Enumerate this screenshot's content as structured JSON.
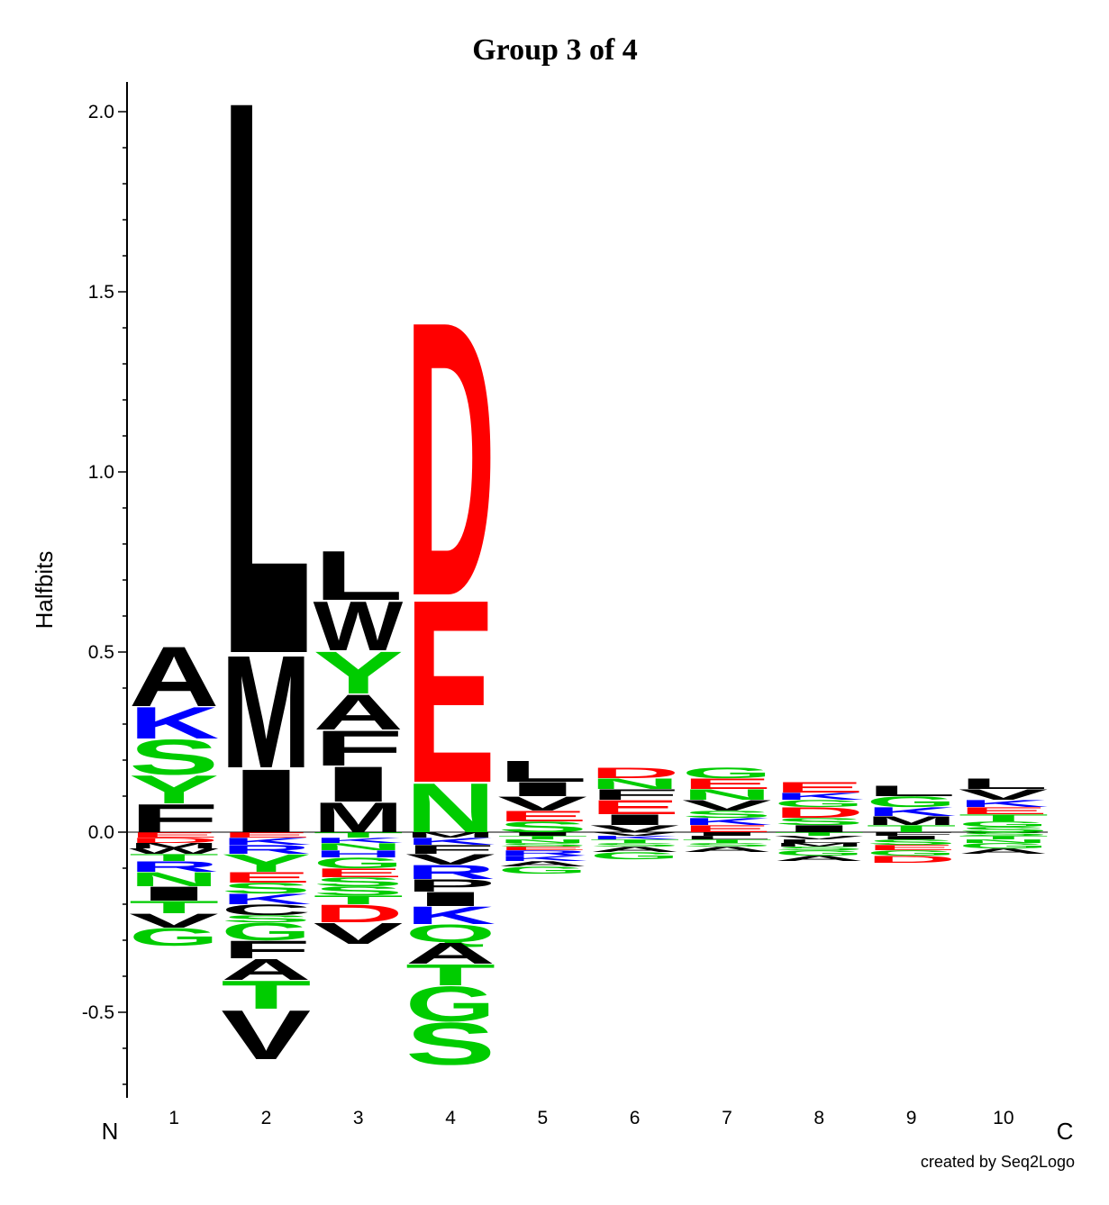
{
  "chart_data": {
    "type": "sequence-logo",
    "title": "Group 3 of 4",
    "ylabel": "Halfbits",
    "ylim": [
      -0.72,
      2.08
    ],
    "yticks": [
      -0.5,
      0.0,
      0.5,
      1.0,
      1.5,
      2.0
    ],
    "ytick_labels": [
      "-0.5",
      "0.0",
      "0.5",
      "1.0",
      "1.5",
      "2.0"
    ],
    "positions": [
      "1",
      "2",
      "3",
      "4",
      "5",
      "6",
      "7",
      "8",
      "9",
      "10"
    ],
    "n_terminal_label": "N",
    "c_terminal_label": "C",
    "credit": "created by Seq2Logo",
    "colors": {
      "hydrophobic": "#000000",
      "polar": "#00cc00",
      "basic": "#0000ff",
      "acidic": "#ff0000"
    },
    "columns": [
      {
        "position": "1",
        "above": [
          [
            "F",
            0.08
          ],
          [
            "Y",
            0.08
          ],
          [
            "S",
            0.1
          ],
          [
            "K",
            0.09
          ],
          [
            "A",
            0.17
          ]
        ],
        "below": [
          [
            "E",
            0.015
          ],
          [
            "D",
            0.015
          ],
          [
            "M",
            0.015
          ],
          [
            "W",
            0.015
          ],
          [
            "T",
            0.02
          ],
          [
            "R",
            0.03
          ],
          [
            "N",
            0.04
          ],
          [
            "I",
            0.04
          ],
          [
            "T",
            0.035
          ],
          [
            "V",
            0.04
          ],
          [
            "G",
            0.05
          ]
        ]
      },
      {
        "position": "2",
        "above": [
          [
            "I",
            0.18
          ],
          [
            "M",
            0.32
          ],
          [
            "L",
            1.58
          ]
        ],
        "below": [
          [
            "E",
            0.015
          ],
          [
            "K",
            0.02
          ],
          [
            "R",
            0.025
          ],
          [
            "Y",
            0.05
          ],
          [
            "E",
            0.03
          ],
          [
            "S",
            0.03
          ],
          [
            "K",
            0.03
          ],
          [
            "C",
            0.03
          ],
          [
            "S",
            0.02
          ],
          [
            "G",
            0.05
          ],
          [
            "F",
            0.05
          ],
          [
            "A",
            0.06
          ],
          [
            "T",
            0.08
          ],
          [
            "V",
            0.14
          ]
        ]
      },
      {
        "position": "3",
        "above": [
          [
            "M",
            0.085
          ],
          [
            "I",
            0.1
          ],
          [
            "F",
            0.1
          ],
          [
            "A",
            0.1
          ],
          [
            "Y",
            0.12
          ],
          [
            "W",
            0.14
          ],
          [
            "L",
            0.14
          ]
        ],
        "below": [
          [
            "T",
            0.015
          ],
          [
            "K",
            0.015
          ],
          [
            "N",
            0.02
          ],
          [
            "H",
            0.02
          ],
          [
            "G",
            0.03
          ],
          [
            "E",
            0.025
          ],
          [
            "S",
            0.025
          ],
          [
            "S",
            0.025
          ],
          [
            "T",
            0.025
          ],
          [
            "D",
            0.05
          ],
          [
            "V",
            0.06
          ]
        ]
      },
      {
        "position": "4",
        "above": [
          [
            "N",
            0.14
          ],
          [
            "E",
            0.52
          ],
          [
            "D",
            0.78
          ]
        ],
        "below": [
          [
            "M",
            0.015
          ],
          [
            "K",
            0.02
          ],
          [
            "F",
            0.025
          ],
          [
            "V",
            0.03
          ],
          [
            "R",
            0.04
          ],
          [
            "P",
            0.035
          ],
          [
            "I",
            0.04
          ],
          [
            "K",
            0.05
          ],
          [
            "Q",
            0.05
          ],
          [
            "A",
            0.06
          ],
          [
            "T",
            0.06
          ],
          [
            "G",
            0.1
          ],
          [
            "S",
            0.12
          ]
        ]
      },
      {
        "position": "5",
        "above": [
          [
            "S",
            0.03
          ],
          [
            "E",
            0.03
          ],
          [
            "V",
            0.04
          ],
          [
            "I",
            0.04
          ],
          [
            "L",
            0.06
          ]
        ],
        "below": [
          [
            "I",
            0.01
          ],
          [
            "T",
            0.01
          ],
          [
            "N",
            0.01
          ],
          [
            "S",
            0.01
          ],
          [
            "E",
            0.01
          ],
          [
            "R",
            0.015
          ],
          [
            "K",
            0.015
          ],
          [
            "A",
            0.015
          ],
          [
            "G",
            0.02
          ]
        ]
      },
      {
        "position": "6",
        "above": [
          [
            "V",
            0.02
          ],
          [
            "I",
            0.03
          ],
          [
            "E",
            0.04
          ],
          [
            "F",
            0.03
          ],
          [
            "N",
            0.03
          ],
          [
            "D",
            0.03
          ]
        ],
        "below": [
          [
            "V",
            0.01
          ],
          [
            "K",
            0.01
          ],
          [
            "T",
            0.01
          ],
          [
            "S",
            0.01
          ],
          [
            "A",
            0.015
          ],
          [
            "G",
            0.02
          ]
        ]
      },
      {
        "position": "7",
        "above": [
          [
            "E",
            0.02
          ],
          [
            "K",
            0.02
          ],
          [
            "S",
            0.02
          ],
          [
            "V",
            0.03
          ],
          [
            "N",
            0.03
          ],
          [
            "E",
            0.03
          ],
          [
            "G",
            0.03
          ]
        ],
        "below": [
          [
            "I",
            0.01
          ],
          [
            "L",
            0.01
          ],
          [
            "T",
            0.01
          ],
          [
            "S",
            0.01
          ],
          [
            "A",
            0.015
          ]
        ]
      },
      {
        "position": "8",
        "above": [
          [
            "I",
            0.02
          ],
          [
            "S",
            0.02
          ],
          [
            "D",
            0.03
          ],
          [
            "G",
            0.02
          ],
          [
            "K",
            0.02
          ],
          [
            "E",
            0.03
          ]
        ],
        "below": [
          [
            "T",
            0.01
          ],
          [
            "V",
            0.01
          ],
          [
            "L",
            0.01
          ],
          [
            "M",
            0.01
          ],
          [
            "S",
            0.01
          ],
          [
            "G",
            0.015
          ],
          [
            "A",
            0.015
          ]
        ]
      },
      {
        "position": "9",
        "above": [
          [
            "T",
            0.02
          ],
          [
            "M",
            0.025
          ],
          [
            "K",
            0.025
          ],
          [
            "G",
            0.03
          ],
          [
            "L",
            0.03
          ]
        ],
        "below": [
          [
            "F",
            0.01
          ],
          [
            "I",
            0.01
          ],
          [
            "S",
            0.015
          ],
          [
            "E",
            0.015
          ],
          [
            "G",
            0.015
          ],
          [
            "D",
            0.02
          ]
        ]
      },
      {
        "position": "10",
        "above": [
          [
            "S",
            0.015
          ],
          [
            "G",
            0.015
          ],
          [
            "T",
            0.02
          ],
          [
            "E",
            0.02
          ],
          [
            "K",
            0.02
          ],
          [
            "V",
            0.03
          ],
          [
            "L",
            0.03
          ]
        ],
        "below": [
          [
            "S",
            0.01
          ],
          [
            "T",
            0.01
          ],
          [
            "N",
            0.01
          ],
          [
            "G",
            0.015
          ],
          [
            "A",
            0.015
          ]
        ]
      }
    ]
  }
}
